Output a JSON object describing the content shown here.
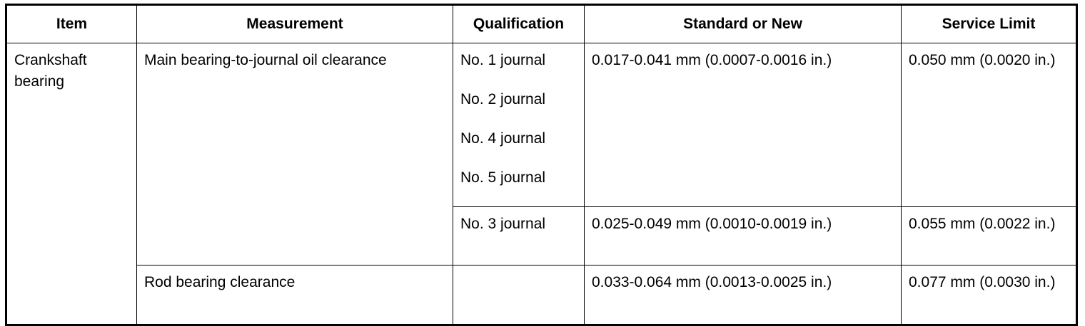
{
  "table": {
    "header": [
      "Item",
      "Measurement",
      "Qualification",
      "Standard or New",
      "Service Limit"
    ],
    "rows": [
      {
        "item": "Crankshaft bearing",
        "measurement": "Main bearing-to-journal oil clearance",
        "qualification": [
          "No. 1 journal",
          "No. 2 journal",
          "No. 4 journal",
          "No. 5 journal"
        ],
        "standard": "0.017-0.041 mm (0.0007-0.0016 in.)",
        "service_limit": "0.050 mm (0.0020 in.)"
      },
      {
        "qualification": [
          "No. 3 journal"
        ],
        "standard": "0.025-0.049 mm (0.0010-0.0019 in.)",
        "service_limit": "0.055 mm (0.0022 in.)"
      },
      {
        "measurement": "Rod bearing clearance",
        "standard": "0.033-0.064 mm (0.0013-0.0025 in.)",
        "service_limit": "0.077 mm (0.0030 in.)"
      }
    ]
  }
}
